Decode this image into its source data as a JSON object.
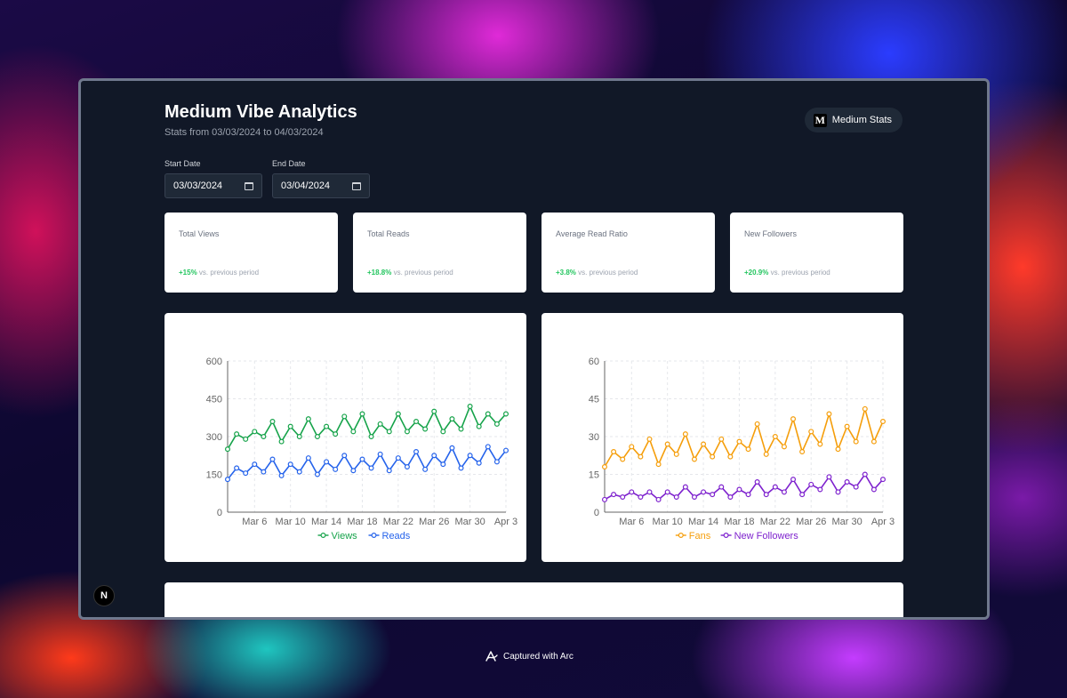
{
  "app": {
    "title": "Medium Vibe Analytics",
    "subtitle": "Stats from 03/03/2024 to 04/03/2024",
    "stats_button": "Medium Stats",
    "logo_letter": "M",
    "corner_logo": "N"
  },
  "filters": {
    "start_label": "Start Date",
    "start_value": "03/03/2024",
    "end_label": "End Date",
    "end_value": "03/04/2024"
  },
  "stats": [
    {
      "title": "Total Views",
      "change": "+15%",
      "suffix": "vs. previous period"
    },
    {
      "title": "Total Reads",
      "change": "+18.8%",
      "suffix": "vs. previous period"
    },
    {
      "title": "Average Read Ratio",
      "change": "+3.8%",
      "suffix": "vs. previous period"
    },
    {
      "title": "New Followers",
      "change": "+20.9%",
      "suffix": "vs. previous period"
    }
  ],
  "footer": {
    "capture_text": "Captured with Arc"
  },
  "colors": {
    "views": "#16a34a",
    "reads": "#2563eb",
    "fans": "#f59e0b",
    "followers": "#7e22ce",
    "positive": "#22c55e"
  },
  "chart_data": [
    {
      "type": "line",
      "x": [
        "Mar 3",
        "Mar 4",
        "Mar 5",
        "Mar 6",
        "Mar 7",
        "Mar 8",
        "Mar 9",
        "Mar 10",
        "Mar 11",
        "Mar 12",
        "Mar 13",
        "Mar 14",
        "Mar 15",
        "Mar 16",
        "Mar 17",
        "Mar 18",
        "Mar 19",
        "Mar 20",
        "Mar 21",
        "Mar 22",
        "Mar 23",
        "Mar 24",
        "Mar 25",
        "Mar 26",
        "Mar 27",
        "Mar 28",
        "Mar 29",
        "Mar 30",
        "Mar 31",
        "Apr 1",
        "Apr 2",
        "Apr 3"
      ],
      "x_ticks": [
        "Mar 6",
        "Mar 10",
        "Mar 14",
        "Mar 18",
        "Mar 22",
        "Mar 26",
        "Mar 30",
        "Apr 3"
      ],
      "y_ticks": [
        0,
        150,
        300,
        450,
        600
      ],
      "ylim": [
        0,
        600
      ],
      "grid": true,
      "legend_position": "bottom",
      "series": [
        {
          "name": "Views",
          "values": [
            250,
            310,
            290,
            320,
            300,
            360,
            280,
            340,
            300,
            370,
            300,
            340,
            310,
            380,
            320,
            390,
            300,
            350,
            320,
            390,
            320,
            360,
            330,
            400,
            320,
            370,
            330,
            420,
            340,
            390,
            350,
            390
          ]
        },
        {
          "name": "Reads",
          "values": [
            130,
            175,
            155,
            190,
            160,
            210,
            145,
            190,
            160,
            215,
            150,
            200,
            170,
            225,
            165,
            210,
            175,
            230,
            165,
            215,
            180,
            240,
            170,
            225,
            190,
            255,
            175,
            225,
            195,
            260,
            200,
            245
          ]
        }
      ]
    },
    {
      "type": "line",
      "x": [
        "Mar 3",
        "Mar 4",
        "Mar 5",
        "Mar 6",
        "Mar 7",
        "Mar 8",
        "Mar 9",
        "Mar 10",
        "Mar 11",
        "Mar 12",
        "Mar 13",
        "Mar 14",
        "Mar 15",
        "Mar 16",
        "Mar 17",
        "Mar 18",
        "Mar 19",
        "Mar 20",
        "Mar 21",
        "Mar 22",
        "Mar 23",
        "Mar 24",
        "Mar 25",
        "Mar 26",
        "Mar 27",
        "Mar 28",
        "Mar 29",
        "Mar 30",
        "Mar 31",
        "Apr 1",
        "Apr 2",
        "Apr 3"
      ],
      "x_ticks": [
        "Mar 6",
        "Mar 10",
        "Mar 14",
        "Mar 18",
        "Mar 22",
        "Mar 26",
        "Mar 30",
        "Apr 3"
      ],
      "y_ticks": [
        0,
        15,
        30,
        45,
        60
      ],
      "ylim": [
        0,
        60
      ],
      "grid": true,
      "legend_position": "bottom",
      "series": [
        {
          "name": "Fans",
          "values": [
            18,
            24,
            21,
            26,
            22,
            29,
            19,
            27,
            23,
            31,
            21,
            27,
            22,
            29,
            22,
            28,
            25,
            35,
            23,
            30,
            26,
            37,
            24,
            32,
            27,
            39,
            25,
            34,
            28,
            41,
            28,
            36
          ]
        },
        {
          "name": "New Followers",
          "values": [
            5,
            7,
            6,
            8,
            6,
            8,
            5,
            8,
            6,
            10,
            6,
            8,
            7,
            10,
            6,
            9,
            7,
            12,
            7,
            10,
            8,
            13,
            7,
            11,
            9,
            14,
            8,
            12,
            10,
            15,
            9,
            13
          ]
        }
      ]
    }
  ]
}
